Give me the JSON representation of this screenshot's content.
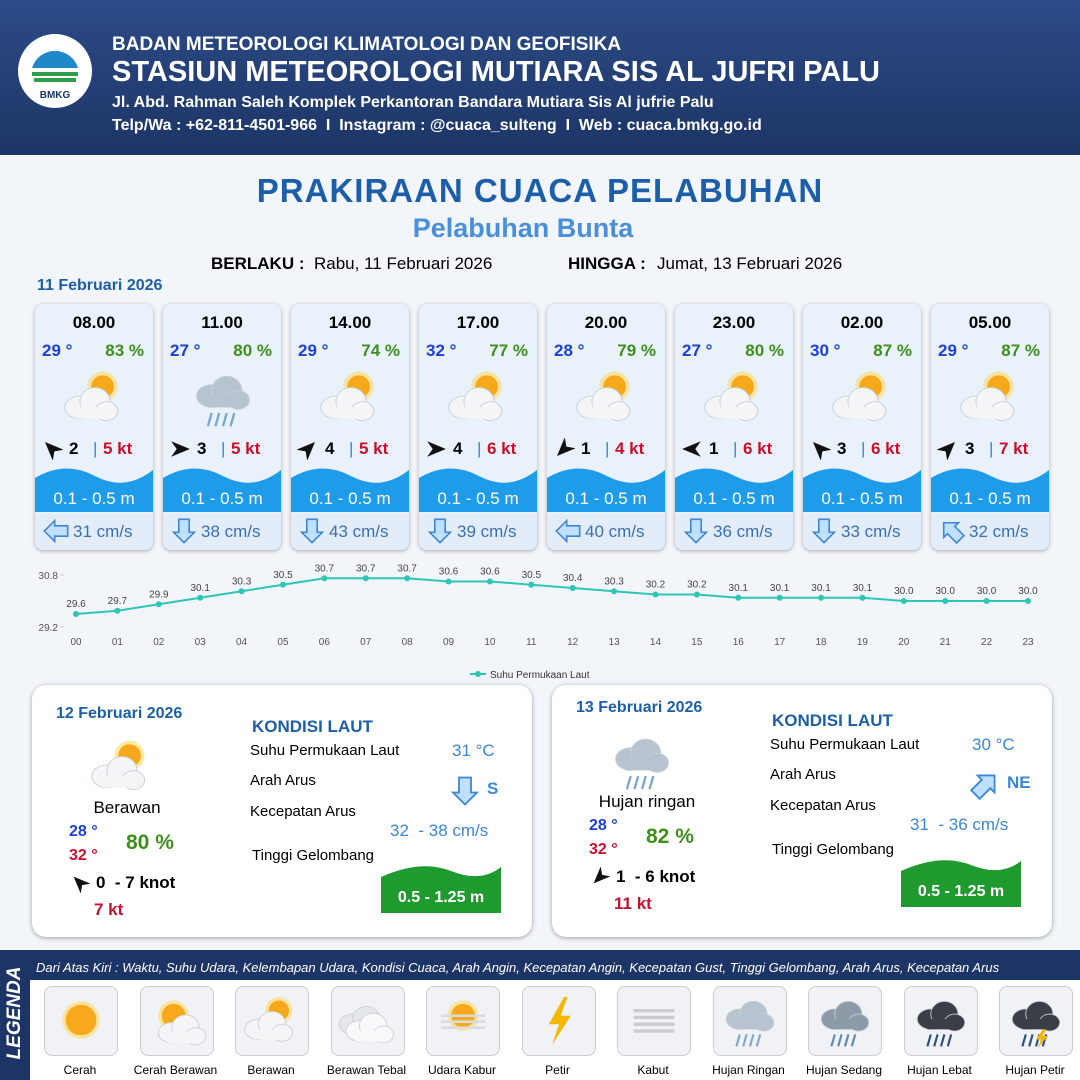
{
  "header": {
    "agency": "BADAN METEOROLOGI KLIMATOLOGI DAN GEOFISIKA",
    "station": "STASIUN METEOROLOGI MUTIARA SIS AL JUFRI PALU",
    "address": "Jl. Abd. Rahman Saleh Komplek Perkantoran Bandara Mutiara Sis Al jufrie Palu",
    "contact": "Telp/Wa : +62-811-4501-966  I  Instagram : @cuaca_sulteng  I  Web : cuaca.bmkg.go.id",
    "logo_text": "BMKG"
  },
  "title": "PRAKIRAAN CUACA PELABUHAN",
  "subtitle": "Pelabuhan Bunta",
  "valid": {
    "from_label": "BERLAKU :",
    "from": "Rabu, 11 Februari 2026",
    "to_label": "HINGGA :",
    "to": "Jumat, 13 Februari 2026"
  },
  "day1": {
    "date": "11 Februari 2026",
    "forecasts": [
      {
        "time": "08.00",
        "temp": "29 °",
        "humidity": "83 %",
        "wind": "2",
        "gust": "5 kt",
        "wave": "0.1 - 0.5 m",
        "current": "31 cm/s"
      },
      {
        "time": "11.00",
        "temp": "27 °",
        "humidity": "80 %",
        "wind": "3",
        "gust": "5 kt",
        "wave": "0.1 - 0.5 m",
        "current": "38 cm/s"
      },
      {
        "time": "14.00",
        "temp": "29 °",
        "humidity": "74 %",
        "wind": "4",
        "gust": "5 kt",
        "wave": "0.1 - 0.5 m",
        "current": "43 cm/s"
      },
      {
        "time": "17.00",
        "temp": "32 °",
        "humidity": "77 %",
        "wind": "4",
        "gust": "6 kt",
        "wave": "0.1 - 0.5 m",
        "current": "39 cm/s"
      },
      {
        "time": "20.00",
        "temp": "28 °",
        "humidity": "79 %",
        "wind": "1",
        "gust": "4 kt",
        "wave": "0.1 - 0.5 m",
        "current": "40 cm/s"
      },
      {
        "time": "23.00",
        "temp": "27 °",
        "humidity": "80 %",
        "wind": "1",
        "gust": "6 kt",
        "wave": "0.1 - 0.5 m",
        "current": "36 cm/s"
      },
      {
        "time": "02.00",
        "temp": "30 °",
        "humidity": "87 %",
        "wind": "3",
        "gust": "6 kt",
        "wave": "0.1 - 0.5 m",
        "current": "33 cm/s"
      },
      {
        "time": "05.00",
        "temp": "29 °",
        "humidity": "87 %",
        "wind": "3",
        "gust": "7 kt",
        "wave": "0.1 - 0.5 m",
        "current": "32 cm/s"
      }
    ]
  },
  "chart_data": {
    "type": "line",
    "categories": [
      "00",
      "01",
      "02",
      "03",
      "04",
      "05",
      "06",
      "07",
      "08",
      "09",
      "10",
      "11",
      "12",
      "13",
      "14",
      "15",
      "16",
      "17",
      "18",
      "19",
      "20",
      "21",
      "22",
      "23"
    ],
    "series": [
      {
        "name": "Suhu Permukaan Laut",
        "color": "#2ec4b6",
        "values": [
          29.6,
          29.7,
          29.9,
          30.1,
          30.3,
          30.5,
          30.7,
          30.7,
          30.7,
          30.6,
          30.6,
          30.5,
          30.4,
          30.3,
          30.2,
          30.2,
          30.1,
          30.1,
          30.1,
          30.1,
          30.0,
          30.0,
          30.0,
          30.0
        ],
        "value_labels": [
          "29.6",
          "29.7",
          "29.9",
          "30.1",
          "30.3",
          "30.5",
          "30.7",
          "30.7",
          "30.7",
          "30.6",
          "30.6",
          "30.5",
          "30.4",
          "30.3",
          "30.2",
          "30.2",
          "30.1",
          "30.1",
          "30.1",
          "30.1",
          "30.0",
          "30.0",
          "30.0",
          "30.0"
        ]
      }
    ],
    "ylim": [
      29.2,
      30.8
    ],
    "yticks": [
      29.2,
      30.8
    ]
  },
  "days": [
    {
      "date": "12 Februari 2026",
      "condition": "Berawan",
      "temp_min": "28 °",
      "temp_max": "32 °",
      "humidity": "80 %",
      "wind": "0  - 7 knot",
      "gust": "7 kt",
      "sea_title": "KONDISI LAUT",
      "sst_label": "Suhu Permukaan Laut",
      "sst": "31 °C",
      "dir_label": "Arah Arus",
      "dir": "S",
      "speed_label": "Kecepatan Arus",
      "speed": "32  - 38 cm/s",
      "wave_label": "Tinggi Gelombang",
      "wave": "0.5 - 1.25 m"
    },
    {
      "date": "13 Februari 2026",
      "condition": "Hujan ringan",
      "temp_min": "28 °",
      "temp_max": "32 °",
      "humidity": "82 %",
      "wind": "1  - 6 knot",
      "gust": "11 kt",
      "sea_title": "KONDISI LAUT",
      "sst_label": "Suhu Permukaan Laut",
      "sst": "30 °C",
      "dir_label": "Arah Arus",
      "dir": "NE",
      "speed_label": "Kecepatan Arus",
      "speed": "31  - 36 cm/s",
      "wave_label": "Tinggi Gelombang",
      "wave": "0.5 - 1.25 m"
    }
  ],
  "legend": {
    "title": "LEGENDA",
    "description": "Dari Atas Kiri : Waktu, Suhu Udara, Kelembapan Udara, Kondisi Cuaca, Arah Angin, Kecepatan Angin, Kecepatan Gust, Tinggi Gelombang, Arah Arus, Kecepatan Arus",
    "items": [
      "Cerah",
      "Cerah Berawan",
      "Berawan",
      "Berawan Tebal",
      "Udara Kabur",
      "Petir",
      "Kabut",
      "Hujan Ringan",
      "Hujan Sedang",
      "Hujan Lebat",
      "Hujan Petir"
    ]
  }
}
